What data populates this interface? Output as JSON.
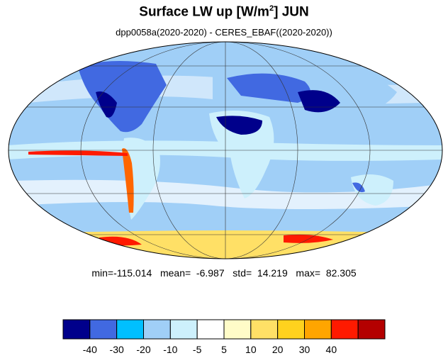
{
  "title": {
    "main": "Surface LW up [W/m",
    "sup": "2",
    "tail": "]  JUN"
  },
  "subtitle": "dpp0058a(2020-2020) - CERES_EBAF((2020-2020))",
  "stats": "min=-115.014   mean=  -6.987   std=  14.219   max=  82.305",
  "colorbar": {
    "colors": [
      "#00008b",
      "#4169e1",
      "#00bfff",
      "#a0cff7",
      "#cdf0fc",
      "#ffffff",
      "#fffcc8",
      "#ffe066",
      "#ffd21e",
      "#ffa500",
      "#ff1a00",
      "#b40000"
    ],
    "labels": [
      "-40",
      "-30",
      "-20",
      "-10",
      "-5",
      "5",
      "10",
      "20",
      "30",
      "40"
    ]
  },
  "map_data": {
    "projection": "mollweide",
    "field": "Surface LW up difference"
  }
}
